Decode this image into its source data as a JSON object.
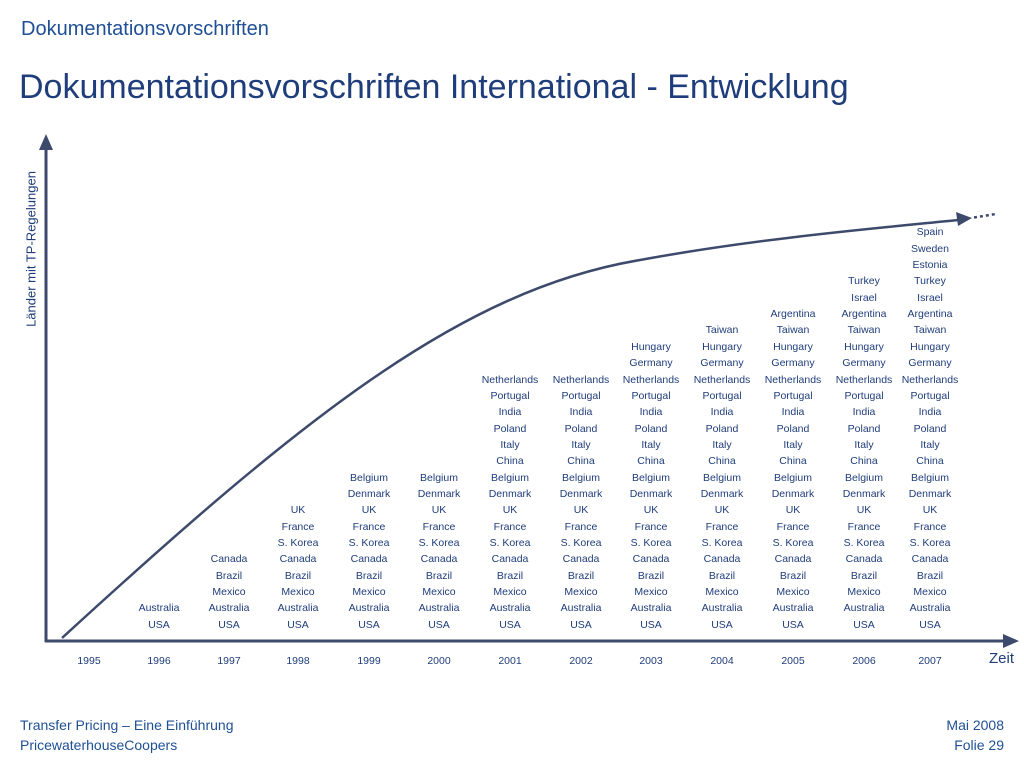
{
  "header": {
    "section_title": "Dokumentationsvorschriften",
    "main_title": "Dokumentationsvorschriften International - Entwicklung"
  },
  "chart_data": {
    "type": "table",
    "ylabel": "Länder mit TP-Regelungen",
    "xlabel": "Zeit",
    "x": [
      "1995",
      "1996",
      "1997",
      "1998",
      "1999",
      "2000",
      "2001",
      "2002",
      "2003",
      "2004",
      "2005",
      "2006",
      "2007"
    ],
    "series": [
      {
        "x": "1995",
        "countries": []
      },
      {
        "x": "1996",
        "countries": [
          "USA",
          "Australia"
        ]
      },
      {
        "x": "1997",
        "countries": [
          "USA",
          "Australia",
          "Mexico",
          "Brazil",
          "Canada"
        ]
      },
      {
        "x": "1998",
        "countries": [
          "USA",
          "Australia",
          "Mexico",
          "Brazil",
          "Canada",
          "S. Korea",
          "France",
          "UK"
        ]
      },
      {
        "x": "1999",
        "countries": [
          "USA",
          "Australia",
          "Mexico",
          "Brazil",
          "Canada",
          "S. Korea",
          "France",
          "UK",
          "Denmark",
          "Belgium"
        ]
      },
      {
        "x": "2000",
        "countries": [
          "USA",
          "Australia",
          "Mexico",
          "Brazil",
          "Canada",
          "S. Korea",
          "France",
          "UK",
          "Denmark",
          "Belgium"
        ]
      },
      {
        "x": "2001",
        "countries": [
          "USA",
          "Australia",
          "Mexico",
          "Brazil",
          "Canada",
          "S. Korea",
          "France",
          "UK",
          "Denmark",
          "Belgium",
          "China",
          "Italy",
          "Poland",
          "India",
          "Portugal",
          "Netherlands"
        ]
      },
      {
        "x": "2002",
        "countries": [
          "USA",
          "Australia",
          "Mexico",
          "Brazil",
          "Canada",
          "S. Korea",
          "France",
          "UK",
          "Denmark",
          "Belgium",
          "China",
          "Italy",
          "Poland",
          "India",
          "Portugal",
          "Netherlands"
        ]
      },
      {
        "x": "2003",
        "countries": [
          "USA",
          "Australia",
          "Mexico",
          "Brazil",
          "Canada",
          "S. Korea",
          "France",
          "UK",
          "Denmark",
          "Belgium",
          "China",
          "Italy",
          "Poland",
          "India",
          "Portugal",
          "Netherlands",
          "Germany",
          "Hungary"
        ]
      },
      {
        "x": "2004",
        "countries": [
          "USA",
          "Australia",
          "Mexico",
          "Brazil",
          "Canada",
          "S. Korea",
          "France",
          "UK",
          "Denmark",
          "Belgium",
          "China",
          "Italy",
          "Poland",
          "India",
          "Portugal",
          "Netherlands",
          "Germany",
          "Hungary",
          "Taiwan"
        ]
      },
      {
        "x": "2005",
        "countries": [
          "USA",
          "Australia",
          "Mexico",
          "Brazil",
          "Canada",
          "S. Korea",
          "France",
          "UK",
          "Denmark",
          "Belgium",
          "China",
          "Italy",
          "Poland",
          "India",
          "Portugal",
          "Netherlands",
          "Germany",
          "Hungary",
          "Taiwan",
          "Argentina"
        ]
      },
      {
        "x": "2006",
        "countries": [
          "USA",
          "Australia",
          "Mexico",
          "Brazil",
          "Canada",
          "S. Korea",
          "France",
          "UK",
          "Denmark",
          "Belgium",
          "China",
          "Italy",
          "Poland",
          "India",
          "Portugal",
          "Netherlands",
          "Germany",
          "Hungary",
          "Taiwan",
          "Argentina",
          "Israel",
          "Turkey"
        ]
      },
      {
        "x": "2007",
        "countries": [
          "USA",
          "Australia",
          "Mexico",
          "Brazil",
          "Canada",
          "S. Korea",
          "France",
          "UK",
          "Denmark",
          "Belgium",
          "China",
          "Italy",
          "Poland",
          "India",
          "Portugal",
          "Netherlands",
          "Germany",
          "Hungary",
          "Taiwan",
          "Argentina",
          "Israel",
          "Turkey",
          "Estonia",
          "Sweden",
          "Spain"
        ]
      }
    ]
  },
  "footer": {
    "left_line1": "Transfer Pricing – Eine Einführung",
    "left_line2": "PricewaterhouseCoopers",
    "right_line1": "Mai 2008",
    "right_line2": "Folie 29"
  },
  "colors": {
    "axis": "#3d4a6b",
    "curve": "#3d4a6b",
    "text": "#1f3d7a",
    "title": "#1f4f94"
  }
}
